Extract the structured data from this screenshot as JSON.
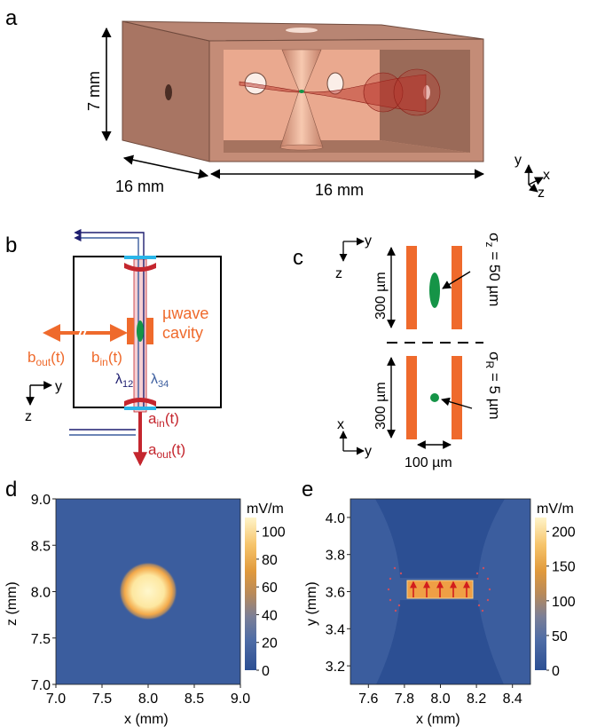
{
  "panels": {
    "a": {
      "label": "a",
      "height_dim": "7 mm",
      "depth_dim": "16 mm",
      "width_dim": "16 mm",
      "axis_y": "y",
      "axis_x": "x",
      "axis_z": "z"
    },
    "b": {
      "label": "b",
      "uwave_line1": "µwave",
      "uwave_line2": "cavity",
      "b_out": "b",
      "b_out_sub": "out",
      "b_out_tail": "(t)",
      "b_in": "b",
      "b_in_sub": "in",
      "b_in_tail": "(t)",
      "a_in": "a",
      "a_in_sub": "in",
      "a_in_tail": "(t)",
      "a_out": "a",
      "a_out_sub": "out",
      "a_out_tail": "(t)",
      "lambda12": "λ",
      "lambda12_sub": "12",
      "lambda34": "λ",
      "lambda34_sub": "34",
      "axis_y": "y",
      "axis_z": "z"
    },
    "c": {
      "label": "c",
      "axis_top_y": "y",
      "axis_top_z": "z",
      "axis_bot_x": "x",
      "axis_bot_y": "y",
      "dim_top": "300 µm",
      "dim_bot": "300 µm",
      "dim_width": "100 µm",
      "sigma_z": "σ",
      "sigma_z_sub": "z",
      "sigma_z_val": " = 50 µm",
      "sigma_r": "σ",
      "sigma_r_sub": "R",
      "sigma_r_val": " = 5 µm"
    },
    "d": {
      "label": "d",
      "xlabel": "x (mm)",
      "ylabel": "z (mm)",
      "cbar_label": "mV/m"
    },
    "e": {
      "label": "e",
      "xlabel": "x (mm)",
      "ylabel": "y (mm)",
      "cbar_label": "mV/m"
    }
  },
  "colors": {
    "copper": "#b07a66",
    "copper_light": "#e2a48c",
    "orange": "#ef6a2c",
    "green": "#159447",
    "blue": "#3b5d9e",
    "red": "#c4262e",
    "dark_blue": "#1f1f70"
  },
  "chart_data": [
    {
      "type": "heatmap",
      "panel": "d",
      "xlabel": "x (mm)",
      "ylabel": "z (mm)",
      "xlim": [
        7.0,
        9.0
      ],
      "ylim": [
        7.0,
        9.0
      ],
      "xticks": [
        "7.0",
        "7.5",
        "8.0",
        "8.5",
        "9.0"
      ],
      "yticks": [
        "7.0",
        "7.5",
        "8.0",
        "8.5",
        "9.0"
      ],
      "colorbar": {
        "label": "mV/m",
        "range": [
          0,
          110
        ],
        "ticks": [
          "0",
          "20",
          "40",
          "60",
          "80",
          "100"
        ]
      },
      "feature": {
        "shape": "circular spot",
        "center": [
          8.0,
          8.0
        ],
        "radius_mm": 0.12,
        "peak": 110
      }
    },
    {
      "type": "heatmap",
      "panel": "e",
      "xlabel": "x (mm)",
      "ylabel": "y (mm)",
      "xlim": [
        7.5,
        8.5
      ],
      "ylim": [
        3.1,
        4.1
      ],
      "xticks": [
        "7.6",
        "7.8",
        "8.0",
        "8.2",
        "8.4"
      ],
      "yticks": [
        "3.2",
        "3.4",
        "3.6",
        "3.8",
        "4.0"
      ],
      "colorbar": {
        "label": "mV/m",
        "range": [
          0,
          220
        ],
        "ticks": [
          "0",
          "50",
          "100",
          "150",
          "200"
        ]
      },
      "feature": {
        "shape": "field in gap between two electrodes",
        "gap_y": [
          3.53,
          3.62
        ],
        "gap_x": [
          7.85,
          8.15
        ],
        "peak": 200
      }
    }
  ]
}
